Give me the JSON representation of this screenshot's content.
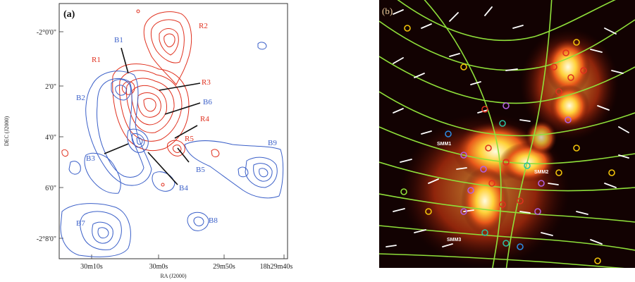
{
  "left_panel": {
    "panel_tag": "(a)",
    "y_ticks": [
      "-2°0'0\"",
      "2'0\"",
      "4'0\"",
      "6'0\"",
      "-2°8'0\""
    ],
    "x_ticks": [
      "30m10s",
      "30m0s",
      "29m50s",
      "18h29m40s"
    ],
    "x_axis_title": "RA (J2000)",
    "y_axis_title": "DEC (J2000)",
    "red_labels": [
      "R2",
      "R1",
      "R3",
      "R4",
      "R5"
    ],
    "blue_labels": [
      "B1",
      "B2",
      "B6",
      "B9",
      "B3",
      "B4",
      "B5",
      "B7",
      "B8"
    ],
    "colors": {
      "red_contour": "#e0301e",
      "blue_contour": "#3a5fc8"
    }
  },
  "right_panel": {
    "panel_tag": "(b)",
    "map_labels": [
      "SMM1",
      "SMM2",
      "SMM3"
    ],
    "colors": {
      "field_lines": "#8fe03a",
      "vectors": "#ffffff"
    }
  }
}
